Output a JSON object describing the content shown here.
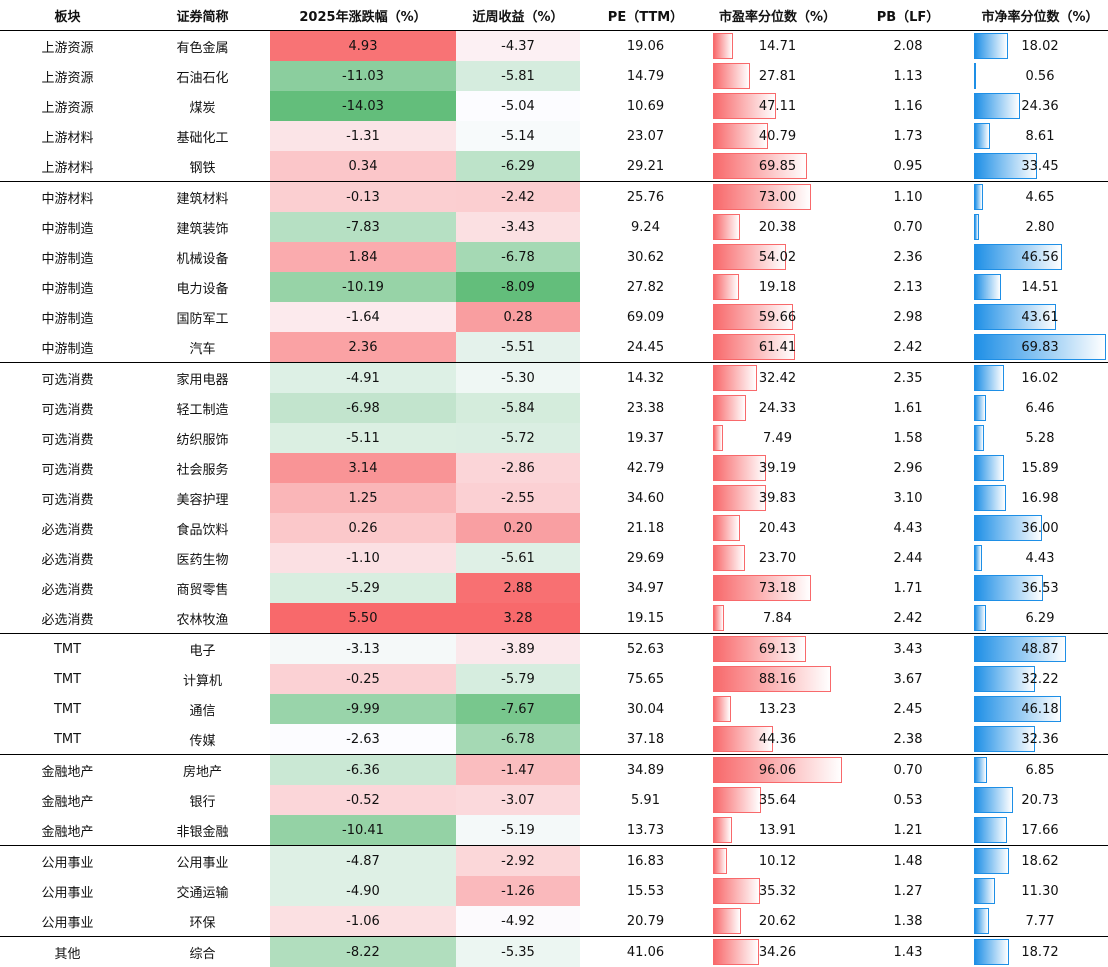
{
  "headers": {
    "sector": "板块",
    "name": "证券简称",
    "ytd": "2025年涨跌幅（%）",
    "week": "近周收益（%）",
    "pe": "PE（TTM）",
    "pe_pct": "市盈率分位数（%）",
    "pb": "PB（LF）",
    "pb_pct": "市净率分位数（%）"
  },
  "colors": {
    "heat_high": "#f8696b",
    "heat_mid": "#fcfcff",
    "heat_low": "#63be7b",
    "pe_bar": "#f8696b",
    "pb_bar": "#1e8fe6"
  },
  "rows": [
    {
      "sector": "上游资源",
      "name": "有色金属",
      "ytd": "4.93",
      "week": "-4.37",
      "pe": "19.06",
      "pe_pct": "14.71",
      "pb": "2.08",
      "pb_pct": "18.02"
    },
    {
      "sector": "上游资源",
      "name": "石油石化",
      "ytd": "-11.03",
      "week": "-5.81",
      "pe": "14.79",
      "pe_pct": "27.81",
      "pb": "1.13",
      "pb_pct": "0.56"
    },
    {
      "sector": "上游资源",
      "name": "煤炭",
      "ytd": "-14.03",
      "week": "-5.04",
      "pe": "10.69",
      "pe_pct": "47.11",
      "pb": "1.16",
      "pb_pct": "24.36"
    },
    {
      "sector": "上游材料",
      "name": "基础化工",
      "ytd": "-1.31",
      "week": "-5.14",
      "pe": "23.07",
      "pe_pct": "40.79",
      "pb": "1.73",
      "pb_pct": "8.61"
    },
    {
      "sector": "上游材料",
      "name": "钢铁",
      "ytd": "0.34",
      "week": "-6.29",
      "pe": "29.21",
      "pe_pct": "69.85",
      "pb": "0.95",
      "pb_pct": "33.45",
      "group_end": true
    },
    {
      "sector": "中游材料",
      "name": "建筑材料",
      "ytd": "-0.13",
      "week": "-2.42",
      "pe": "25.76",
      "pe_pct": "73.00",
      "pb": "1.10",
      "pb_pct": "4.65"
    },
    {
      "sector": "中游制造",
      "name": "建筑装饰",
      "ytd": "-7.83",
      "week": "-3.43",
      "pe": "9.24",
      "pe_pct": "20.38",
      "pb": "0.70",
      "pb_pct": "2.80"
    },
    {
      "sector": "中游制造",
      "name": "机械设备",
      "ytd": "1.84",
      "week": "-6.78",
      "pe": "30.62",
      "pe_pct": "54.02",
      "pb": "2.36",
      "pb_pct": "46.56"
    },
    {
      "sector": "中游制造",
      "name": "电力设备",
      "ytd": "-10.19",
      "week": "-8.09",
      "pe": "27.82",
      "pe_pct": "19.18",
      "pb": "2.13",
      "pb_pct": "14.51"
    },
    {
      "sector": "中游制造",
      "name": "国防军工",
      "ytd": "-1.64",
      "week": "0.28",
      "pe": "69.09",
      "pe_pct": "59.66",
      "pb": "2.98",
      "pb_pct": "43.61"
    },
    {
      "sector": "中游制造",
      "name": "汽车",
      "ytd": "2.36",
      "week": "-5.51",
      "pe": "24.45",
      "pe_pct": "61.41",
      "pb": "2.42",
      "pb_pct": "69.83",
      "group_end": true
    },
    {
      "sector": "可选消费",
      "name": "家用电器",
      "ytd": "-4.91",
      "week": "-5.30",
      "pe": "14.32",
      "pe_pct": "32.42",
      "pb": "2.35",
      "pb_pct": "16.02"
    },
    {
      "sector": "可选消费",
      "name": "轻工制造",
      "ytd": "-6.98",
      "week": "-5.84",
      "pe": "23.38",
      "pe_pct": "24.33",
      "pb": "1.61",
      "pb_pct": "6.46"
    },
    {
      "sector": "可选消费",
      "name": "纺织服饰",
      "ytd": "-5.11",
      "week": "-5.72",
      "pe": "19.37",
      "pe_pct": "7.49",
      "pb": "1.58",
      "pb_pct": "5.28"
    },
    {
      "sector": "可选消费",
      "name": "社会服务",
      "ytd": "3.14",
      "week": "-2.86",
      "pe": "42.79",
      "pe_pct": "39.19",
      "pb": "2.96",
      "pb_pct": "15.89"
    },
    {
      "sector": "可选消费",
      "name": "美容护理",
      "ytd": "1.25",
      "week": "-2.55",
      "pe": "34.60",
      "pe_pct": "39.83",
      "pb": "3.10",
      "pb_pct": "16.98"
    },
    {
      "sector": "必选消费",
      "name": "食品饮料",
      "ytd": "0.26",
      "week": "0.20",
      "pe": "21.18",
      "pe_pct": "20.43",
      "pb": "4.43",
      "pb_pct": "36.00"
    },
    {
      "sector": "必选消费",
      "name": "医药生物",
      "ytd": "-1.10",
      "week": "-5.61",
      "pe": "29.69",
      "pe_pct": "23.70",
      "pb": "2.44",
      "pb_pct": "4.43"
    },
    {
      "sector": "必选消费",
      "name": "商贸零售",
      "ytd": "-5.29",
      "week": "2.88",
      "pe": "34.97",
      "pe_pct": "73.18",
      "pb": "1.71",
      "pb_pct": "36.53"
    },
    {
      "sector": "必选消费",
      "name": "农林牧渔",
      "ytd": "5.50",
      "week": "3.28",
      "pe": "19.15",
      "pe_pct": "7.84",
      "pb": "2.42",
      "pb_pct": "6.29",
      "group_end": true
    },
    {
      "sector": "TMT",
      "name": "电子",
      "ytd": "-3.13",
      "week": "-3.89",
      "pe": "52.63",
      "pe_pct": "69.13",
      "pb": "3.43",
      "pb_pct": "48.87"
    },
    {
      "sector": "TMT",
      "name": "计算机",
      "ytd": "-0.25",
      "week": "-5.79",
      "pe": "75.65",
      "pe_pct": "88.16",
      "pb": "3.67",
      "pb_pct": "32.22"
    },
    {
      "sector": "TMT",
      "name": "通信",
      "ytd": "-9.99",
      "week": "-7.67",
      "pe": "30.04",
      "pe_pct": "13.23",
      "pb": "2.45",
      "pb_pct": "46.18"
    },
    {
      "sector": "TMT",
      "name": "传媒",
      "ytd": "-2.63",
      "week": "-6.78",
      "pe": "37.18",
      "pe_pct": "44.36",
      "pb": "2.38",
      "pb_pct": "32.36",
      "group_end": true
    },
    {
      "sector": "金融地产",
      "name": "房地产",
      "ytd": "-6.36",
      "week": "-1.47",
      "pe": "34.89",
      "pe_pct": "96.06",
      "pb": "0.70",
      "pb_pct": "6.85"
    },
    {
      "sector": "金融地产",
      "name": "银行",
      "ytd": "-0.52",
      "week": "-3.07",
      "pe": "5.91",
      "pe_pct": "35.64",
      "pb": "0.53",
      "pb_pct": "20.73"
    },
    {
      "sector": "金融地产",
      "name": "非银金融",
      "ytd": "-10.41",
      "week": "-5.19",
      "pe": "13.73",
      "pe_pct": "13.91",
      "pb": "1.21",
      "pb_pct": "17.66",
      "group_end": true
    },
    {
      "sector": "公用事业",
      "name": "公用事业",
      "ytd": "-4.87",
      "week": "-2.92",
      "pe": "16.83",
      "pe_pct": "10.12",
      "pb": "1.48",
      "pb_pct": "18.62"
    },
    {
      "sector": "公用事业",
      "name": "交通运输",
      "ytd": "-4.90",
      "week": "-1.26",
      "pe": "15.53",
      "pe_pct": "35.32",
      "pb": "1.27",
      "pb_pct": "11.30"
    },
    {
      "sector": "公用事业",
      "name": "环保",
      "ytd": "-1.06",
      "week": "-4.92",
      "pe": "20.79",
      "pe_pct": "20.62",
      "pb": "1.38",
      "pb_pct": "7.77",
      "group_end": true
    },
    {
      "sector": "其他",
      "name": "综合",
      "ytd": "-8.22",
      "week": "-5.35",
      "pe": "41.06",
      "pe_pct": "34.26",
      "pb": "1.43",
      "pb_pct": "18.72"
    }
  ]
}
